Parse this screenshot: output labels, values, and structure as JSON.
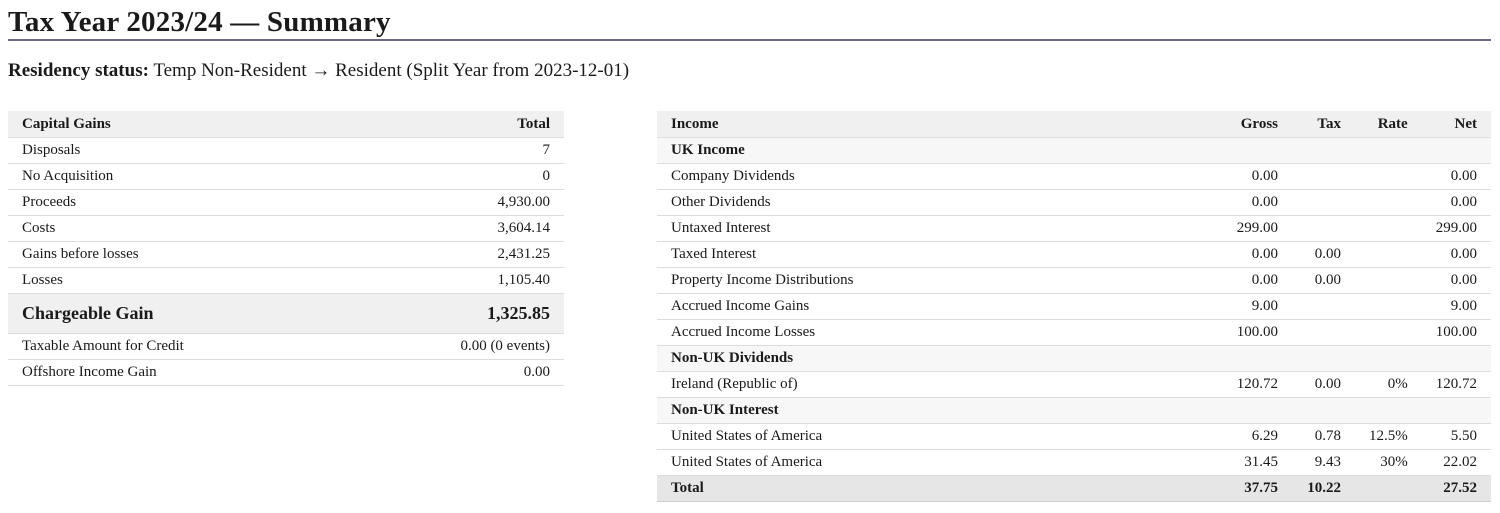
{
  "page": {
    "title": "Tax Year 2023/24 — Summary",
    "residency_label": "Residency status:",
    "residency_value": "Temp Non-Resident → Resident (Split Year from 2023-12-01)"
  },
  "capital_gains": {
    "header": {
      "name": "Capital Gains",
      "total": "Total"
    },
    "disposals": {
      "label": "Disposals",
      "value": "7"
    },
    "no_acquisition": {
      "label": "No Acquisition",
      "value": "0"
    },
    "proceeds": {
      "label": "Proceeds",
      "value": "4,930.00"
    },
    "costs": {
      "label": "Costs",
      "value": "3,604.14"
    },
    "gains_before_losses": {
      "label": "Gains before losses",
      "value": "2,431.25"
    },
    "losses": {
      "label": "Losses",
      "value": "1,105.40"
    },
    "chargeable_gain": {
      "label": "Chargeable Gain",
      "value": "1,325.85"
    },
    "taxable_amount_for_credit": {
      "label": "Taxable Amount for Credit",
      "value": "0.00 (0 events)"
    },
    "offshore_income_gain": {
      "label": "Offshore Income Gain",
      "value": "0.00"
    }
  },
  "income": {
    "header": {
      "name": "Income",
      "gross": "Gross",
      "tax": "Tax",
      "rate": "Rate",
      "net": "Net"
    },
    "uk_income": {
      "label": "UK Income",
      "company_dividends": {
        "label": "Company Dividends",
        "gross": "0.00",
        "tax": "",
        "rate": "",
        "net": "0.00"
      },
      "other_dividends": {
        "label": "Other Dividends",
        "gross": "0.00",
        "tax": "",
        "rate": "",
        "net": "0.00"
      },
      "untaxed_interest": {
        "label": "Untaxed Interest",
        "gross": "299.00",
        "tax": "",
        "rate": "",
        "net": "299.00"
      },
      "taxed_interest": {
        "label": "Taxed Interest",
        "gross": "0.00",
        "tax": "0.00",
        "rate": "",
        "net": "0.00"
      },
      "property_income_distributions": {
        "label": "Property Income Distributions",
        "gross": "0.00",
        "tax": "0.00",
        "rate": "",
        "net": "0.00"
      },
      "accrued_income_gains": {
        "label": "Accrued Income Gains",
        "gross": "9.00",
        "tax": "",
        "rate": "",
        "net": "9.00"
      },
      "accrued_income_losses": {
        "label": "Accrued Income Losses",
        "gross": "100.00",
        "tax": "",
        "rate": "",
        "net": "100.00"
      }
    },
    "non_uk_dividends": {
      "label": "Non-UK Dividends",
      "ireland": {
        "label": "Ireland (Republic of)",
        "gross": "120.72",
        "tax": "0.00",
        "rate": "0%",
        "net": "120.72"
      }
    },
    "non_uk_interest": {
      "label": "Non-UK Interest",
      "usa_1": {
        "label": "United States of America",
        "gross": "6.29",
        "tax": "0.78",
        "rate": "12.5%",
        "net": "5.50"
      },
      "usa_2": {
        "label": "United States of America",
        "gross": "31.45",
        "tax": "9.43",
        "rate": "30%",
        "net": "22.02"
      }
    },
    "total": {
      "label": "Total",
      "gross": "37.75",
      "tax": "10.22",
      "rate": "",
      "net": "27.52"
    }
  }
}
